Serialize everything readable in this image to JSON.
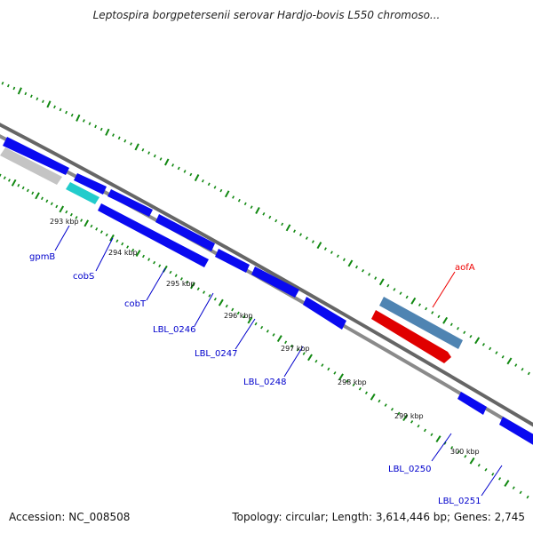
{
  "title": "Leptospira borgpetersenii serovar Hardjo-bovis L550 chromoso...",
  "scale_labels": [
    "293 kbp",
    "294 kbp",
    "295 kbp",
    "296 kbp",
    "297 kbp",
    "298 kbp",
    "299 kbp",
    "300 kbp"
  ],
  "genes": {
    "gpmB": "gpmB",
    "cobS": "cobS",
    "cobT": "cobT",
    "LBL_0246": "LBL_0246",
    "LBL_0247": "LBL_0247",
    "LBL_0248": "LBL_0248",
    "LBL_0250": "LBL_0250",
    "LBL_0251": "LBL_0251",
    "aofA": "aofA"
  },
  "footer": {
    "accession": "Accession: NC_008508",
    "topology": "Topology: circular; Length: 3,614,446 bp; Genes: 2,745"
  },
  "colors": {
    "gene_blue": "#0a0af0",
    "gene_label_blue": "#0000cc",
    "highlight_red": "#e00000",
    "steel_blue": "#4f84b2",
    "cyan": "#22cccc",
    "gray": "#c4c4c4",
    "tick_green": "#118811"
  }
}
